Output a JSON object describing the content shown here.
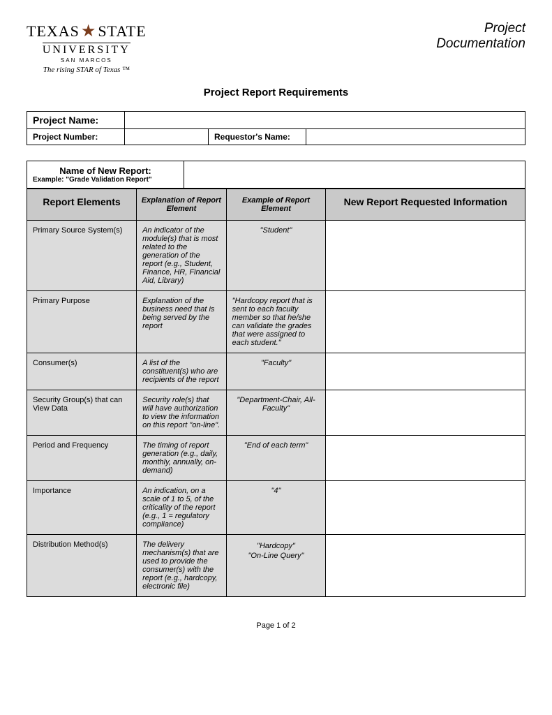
{
  "logo": {
    "texas": "TEXAS",
    "state": "STATE",
    "university": "UNIVERSITY",
    "sanmarcos": "SAN MARCOS",
    "tagline": "The rising STAR of Texas ™"
  },
  "header": {
    "type_line1": "Project",
    "type_line2": "Documentation"
  },
  "title": "Project Report Requirements",
  "info": {
    "project_name_label": "Project Name:",
    "project_name_value": "",
    "project_number_label": "Project Number:",
    "project_number_value": "",
    "requestor_label": "Requestor's Name:",
    "requestor_value": ""
  },
  "report_name": {
    "label": "Name of New Report:",
    "example": "Example:  \"Grade Validation Report\"",
    "value": ""
  },
  "columns": {
    "elements": "Report Elements",
    "explanation": "Explanation of Report Element",
    "example": "Example of Report Element",
    "requested": "New Report Requested Information"
  },
  "rows": [
    {
      "element": "Primary Source System(s)",
      "explanation": "An indicator of the module(s) that is most related to the generation of the report (e.g., Student, Finance, HR, Financial Aid, Library)",
      "example": "\"Student\"",
      "requested": ""
    },
    {
      "element": "Primary Purpose",
      "explanation": "Explanation of the business need that is being served by the report",
      "example": "\"Hardcopy report that is sent to each faculty member so that he/she can validate the grades that were assigned to each student.\"",
      "requested": "",
      "example_align": "left"
    },
    {
      "element": "Consumer(s)",
      "explanation": "A list of the constituent(s) who are recipients of the report",
      "example": "\"Faculty\"",
      "requested": ""
    },
    {
      "element": "Security Group(s) that can View Data",
      "explanation": "Security role(s) that will have authorization to view the information on this report \"on-line\".",
      "example": "\"Department-Chair, All-Faculty\"",
      "requested": ""
    },
    {
      "element": "Period and Frequency",
      "explanation": "The timing of report generation (e.g., daily, monthly, annually, on-demand)",
      "example": "\"End of each term\"",
      "requested": ""
    },
    {
      "element": "Importance",
      "explanation": "An indication, on a scale of 1 to 5, of the criticality of the report (e.g., 1 = regulatory compliance)",
      "example": "\"4\"",
      "requested": ""
    },
    {
      "element": "Distribution Method(s)",
      "explanation": "The delivery mechanism(s) that are used to provide the consumer(s) with the report (e.g., hardcopy, electronic file)",
      "example_multi": [
        "\"Hardcopy\"",
        "\"On-Line Query\""
      ],
      "requested": ""
    }
  ],
  "footer": "Page 1 of 2"
}
